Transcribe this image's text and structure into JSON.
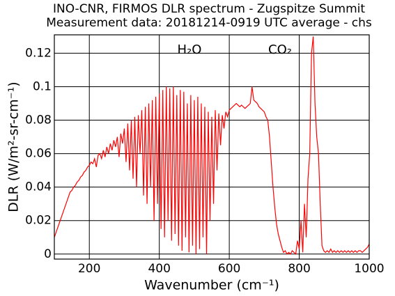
{
  "chart_data": {
    "type": "line",
    "title": "INO-CNR, FIRMOS DLR spectrum - Zugspitze Summit",
    "subtitle": "Measurement data: 20181214-0919 UTC average - chs",
    "x_label": "Wavenumber (cm⁻¹)",
    "y_label": "DLR (W/m²-sr-cm⁻¹)",
    "annotations": [
      "H₂O",
      "CO₂"
    ],
    "xlim": [
      100,
      1000
    ],
    "ylim": [
      -0.003,
      0.131
    ],
    "xticks": [
      200,
      400,
      600,
      800,
      1000
    ],
    "yticks": [
      {
        "value": 0,
        "label": "0"
      },
      0.02,
      0.04,
      0.06,
      0.08,
      0.1,
      0.12
    ],
    "grid": true,
    "x": [
      100,
      105,
      110,
      115,
      120,
      125,
      130,
      135,
      140,
      145,
      150,
      155,
      160,
      165,
      170,
      175,
      180,
      185,
      190,
      195,
      200,
      205,
      210,
      215,
      220,
      225,
      230,
      235,
      240,
      245,
      250,
      255,
      260,
      265,
      270,
      275,
      280,
      285,
      290,
      295,
      300,
      305,
      310,
      315,
      320,
      325,
      330,
      335,
      340,
      345,
      350,
      355,
      360,
      365,
      370,
      375,
      380,
      385,
      390,
      395,
      400,
      405,
      410,
      415,
      420,
      425,
      430,
      435,
      440,
      445,
      450,
      455,
      460,
      465,
      470,
      475,
      480,
      485,
      490,
      495,
      500,
      505,
      510,
      515,
      520,
      525,
      530,
      535,
      540,
      545,
      550,
      555,
      560,
      565,
      570,
      575,
      580,
      585,
      590,
      595,
      600,
      605,
      610,
      615,
      620,
      625,
      630,
      635,
      640,
      645,
      650,
      655,
      660,
      665,
      670,
      675,
      680,
      685,
      690,
      695,
      700,
      705,
      710,
      715,
      720,
      725,
      730,
      735,
      740,
      745,
      750,
      755,
      760,
      765,
      770,
      775,
      780,
      785,
      790,
      795,
      800,
      805,
      810,
      815,
      820,
      825,
      830,
      835,
      840,
      845,
      850,
      855,
      860,
      865,
      870,
      875,
      880,
      885,
      890,
      895,
      900,
      905,
      910,
      915,
      920,
      925,
      930,
      935,
      940,
      945,
      950,
      955,
      960,
      965,
      970,
      975,
      980,
      985,
      990,
      995,
      1000
    ],
    "series": [
      {
        "name": "DLR",
        "color": "#ff0000",
        "values": [
          0.01,
          0.013,
          0.016,
          0.019,
          0.022,
          0.025,
          0.028,
          0.031,
          0.034,
          0.037,
          0.038,
          0.04,
          0.041,
          0.043,
          0.044,
          0.046,
          0.047,
          0.049,
          0.05,
          0.052,
          0.053,
          0.055,
          0.054,
          0.057,
          0.052,
          0.059,
          0.06,
          0.057,
          0.062,
          0.058,
          0.064,
          0.06,
          0.066,
          0.062,
          0.068,
          0.064,
          0.07,
          0.058,
          0.072,
          0.066,
          0.075,
          0.055,
          0.078,
          0.05,
          0.08,
          0.045,
          0.082,
          0.04,
          0.083,
          0.06,
          0.086,
          0.035,
          0.088,
          0.03,
          0.09,
          0.04,
          0.092,
          0.02,
          0.094,
          0.03,
          0.096,
          0.015,
          0.098,
          0.01,
          0.1,
          0.02,
          0.099,
          0.008,
          0.1,
          0.012,
          0.095,
          0.005,
          0.098,
          0.002,
          0.097,
          0.01,
          0.09,
          0.001,
          0.095,
          0.005,
          0.092,
          0.0,
          0.094,
          0.003,
          0.09,
          0.01,
          0.088,
          0.0,
          0.085,
          0.02,
          0.082,
          0.03,
          0.086,
          0.05,
          0.084,
          0.065,
          0.083,
          0.075,
          0.085,
          0.082,
          0.086,
          0.087,
          0.088,
          0.089,
          0.09,
          0.089,
          0.088,
          0.089,
          0.088,
          0.087,
          0.088,
          0.089,
          0.09,
          0.1,
          0.092,
          0.091,
          0.09,
          0.088,
          0.087,
          0.086,
          0.085,
          0.082,
          0.08,
          0.07,
          0.055,
          0.04,
          0.028,
          0.018,
          0.012,
          0.008,
          0.004,
          0.001,
          0.002,
          0.0,
          0.001,
          0.0,
          0.002,
          0.001,
          0.0,
          0.008,
          0.003,
          0.02,
          0.001,
          0.03,
          0.01,
          0.045,
          0.06,
          0.12,
          0.13,
          0.09,
          0.07,
          0.06,
          0.03,
          0.005,
          0.002,
          0.001,
          0.002,
          0.001,
          0.003,
          0.001,
          0.002,
          0.001,
          0.002,
          0.001,
          0.002,
          0.001,
          0.002,
          0.001,
          0.002,
          0.001,
          0.002,
          0.001,
          0.002,
          0.001,
          0.002,
          0.002,
          0.001,
          0.002,
          0.003,
          0.004,
          0.006
        ]
      }
    ]
  }
}
